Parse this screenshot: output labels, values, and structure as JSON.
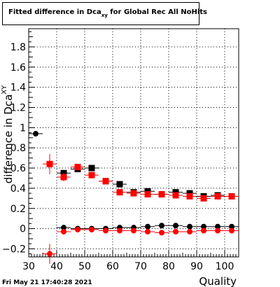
{
  "chart_data": {
    "type": "scatter",
    "title_main": "Fitted difference in Dca",
    "title_sub": "xy",
    "title_tail": " for Global Rec All NoHits",
    "xlabel": "Quality",
    "ylabel": "difference in Dca",
    "ylabel_sub": "XY",
    "xlim": [
      30,
      105
    ],
    "ylim": [
      -0.28,
      1.98
    ],
    "x_ticks": [
      30,
      40,
      50,
      60,
      70,
      80,
      90,
      100
    ],
    "y_ticks": [
      -0.2,
      0,
      0.2,
      0.4,
      0.6,
      0.8,
      1,
      1.2,
      1.4,
      1.6,
      1.8
    ],
    "y_tick_labels": [
      "−0.2",
      "0",
      "0.2",
      "0.4",
      "0.6",
      "0.8",
      "1",
      "1.2",
      "1.4",
      "1.6",
      "1.8"
    ],
    "grid": true,
    "series": [
      {
        "marker": "circle",
        "color": "#000000",
        "x": [
          32.5,
          42.5,
          47.5,
          52.5,
          57.5,
          62.5,
          67.5,
          72.5,
          77.5,
          82.5,
          87.5,
          92.5,
          97.5,
          102.5
        ],
        "y": [
          0.94,
          0.01,
          0.0,
          0.0,
          0.0,
          0.01,
          0.01,
          0.02,
          0.03,
          0.03,
          0.02,
          0.02,
          0.02,
          0.02
        ],
        "yerr": [
          0,
          0,
          0,
          0,
          0,
          0,
          0,
          0,
          0,
          0,
          0,
          0,
          0,
          0
        ]
      },
      {
        "marker": "square",
        "color": "#000000",
        "x": [
          42.5,
          47.5,
          52.5,
          57.5,
          62.5,
          67.5,
          72.5,
          77.5,
          82.5,
          87.5,
          92.5,
          97.5,
          102.5
        ],
        "y": [
          0.55,
          0.59,
          0.6,
          0.47,
          0.44,
          0.36,
          0.37,
          0.34,
          0.36,
          0.35,
          0.32,
          0.33,
          0.32
        ],
        "yerr": [
          0,
          0,
          0,
          0,
          0,
          0,
          0,
          0,
          0,
          0,
          0,
          0,
          0
        ]
      },
      {
        "marker": "circle",
        "color": "#ff0000",
        "x": [
          37.5,
          42.5,
          47.5,
          52.5,
          57.5,
          62.5,
          67.5,
          72.5,
          77.5,
          82.5,
          87.5,
          92.5,
          97.5,
          102.5
        ],
        "y": [
          -0.25,
          -0.03,
          -0.01,
          -0.01,
          -0.02,
          -0.02,
          -0.02,
          -0.03,
          -0.04,
          -0.03,
          -0.03,
          -0.02,
          -0.02,
          -0.02
        ],
        "yerr": [
          0.1,
          0,
          0,
          0,
          0,
          0,
          0,
          0,
          0,
          0,
          0,
          0,
          0,
          0
        ]
      },
      {
        "marker": "square",
        "color": "#ff0000",
        "x": [
          37.5,
          42.5,
          47.5,
          52.5,
          57.5,
          62.5,
          67.5,
          72.5,
          77.5,
          82.5,
          87.5,
          92.5,
          97.5,
          102.5
        ],
        "y": [
          0.64,
          0.51,
          0.61,
          0.53,
          0.47,
          0.36,
          0.35,
          0.34,
          0.34,
          0.33,
          0.32,
          0.3,
          0.32,
          0.32
        ],
        "yerr": [
          0.1,
          0.04,
          0,
          0,
          0,
          0,
          0,
          0,
          0,
          0,
          0,
          0,
          0,
          0
        ]
      }
    ]
  },
  "footer": {
    "timestamp": "Fri May 21 17:40:28 2021"
  }
}
